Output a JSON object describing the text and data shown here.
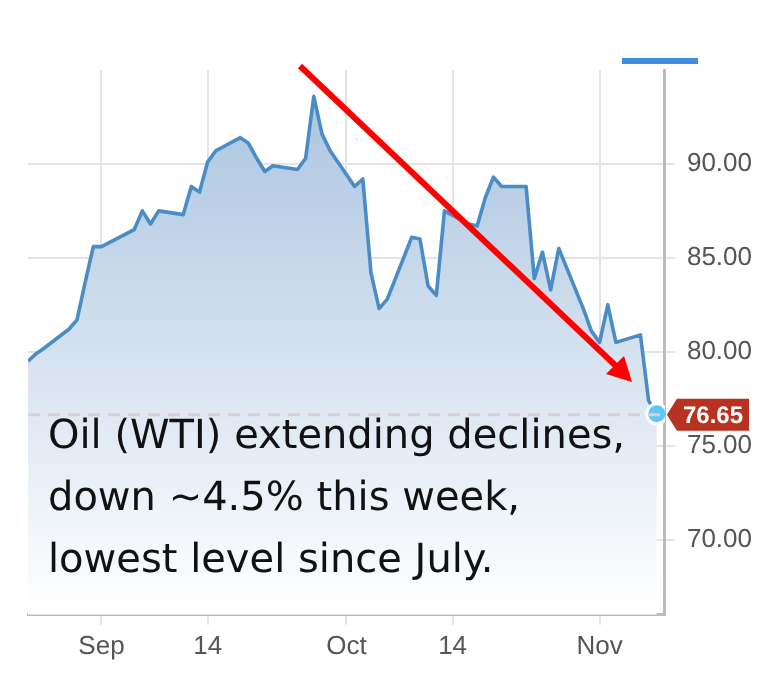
{
  "chart_data": {
    "type": "area",
    "annotations": [
      "Oil (WTI) extending declines, down ~4.5% this week, lowest level since July."
    ],
    "x": [
      "--08-23",
      "--08-24",
      "--08-25",
      "--08-28",
      "--08-29",
      "--08-30",
      "--08-31",
      "--09-01",
      "--09-05",
      "--09-06",
      "--09-07",
      "--09-08",
      "--09-11",
      "--09-12",
      "--09-13",
      "--09-14",
      "--09-15",
      "--09-18",
      "--09-19",
      "--09-20",
      "--09-21",
      "--09-22",
      "--09-25",
      "--09-26",
      "--09-27",
      "--09-28",
      "--09-29",
      "--10-02",
      "--10-03",
      "--10-04",
      "--10-05",
      "--10-06",
      "--10-09",
      "--10-10",
      "--10-11",
      "--10-12",
      "--10-13",
      "--10-16",
      "--10-17",
      "--10-18",
      "--10-19",
      "--10-20",
      "--10-23",
      "--10-24",
      "--10-25",
      "--10-26",
      "--10-27",
      "--10-30",
      "--10-31",
      "--11-01",
      "--11-02",
      "--11-03",
      "--11-06",
      "--11-07",
      "--11-08"
    ],
    "series": [
      {
        "color": "#4a8cc6",
        "values": [
          79.5,
          79.9,
          80.2,
          81.2,
          81.7,
          83.7,
          85.6,
          85.6,
          86.5,
          87.5,
          86.8,
          87.5,
          87.3,
          88.8,
          88.5,
          90.1,
          90.7,
          91.4,
          91.1,
          90.3,
          89.6,
          89.9,
          89.7,
          90.3,
          93.6,
          91.6,
          90.7,
          88.8,
          89.2,
          84.2,
          82.3,
          82.8,
          86.1,
          86.0,
          83.5,
          83.0,
          87.5,
          86.8,
          86.7,
          88.2,
          89.3,
          88.8,
          88.8,
          83.9,
          85.3,
          83.3,
          85.5,
          82.3,
          81.1,
          80.5,
          82.5,
          80.5,
          80.9,
          77.4,
          76.7
        ]
      }
    ],
    "xlim": [
      "--08-23",
      "--11-09"
    ],
    "xticks": [
      {
        "value": "--09-01",
        "label": "Sep"
      },
      {
        "value": "--09-14",
        "label": "14"
      },
      {
        "value": "--10-01",
        "label": "Oct"
      },
      {
        "value": "--10-14",
        "label": "14"
      },
      {
        "value": "--11-01",
        "label": "Nov"
      }
    ],
    "ylim": [
      66,
      95
    ],
    "yticks": [
      {
        "value": 70,
        "label": "70.00"
      },
      {
        "value": 75,
        "label": "75.00"
      },
      {
        "value": 80,
        "label": "80.00"
      },
      {
        "value": 85,
        "label": "85.00"
      },
      {
        "value": 90,
        "label": "90.00"
      }
    ],
    "ref_lines": [
      {
        "axis": "y",
        "value": 76.65,
        "label": "76.65",
        "color": "#dccfd2",
        "line_style": "dashed"
      }
    ],
    "grid": true,
    "legend": false
  }
}
